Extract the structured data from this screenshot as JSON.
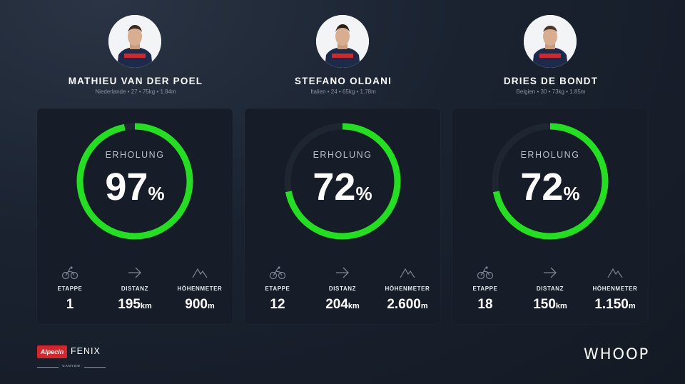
{
  "riders": [
    {
      "name": "MATHIEU VAN DER POEL",
      "meta": "Niederlande • 27 • 75kg • 1.84m",
      "recovery_label": "ERHOLUNG",
      "recovery_value": "97",
      "recovery_unit": "%",
      "recovery_fraction": 0.97,
      "stats": [
        {
          "icon": "cyclist-icon",
          "label": "ETAPPE",
          "value": "1",
          "unit": ""
        },
        {
          "icon": "arrow-right-icon",
          "label": "DISTANZ",
          "value": "195",
          "unit": "km"
        },
        {
          "icon": "mountain-icon",
          "label": "HÖHENMETER",
          "value": "900",
          "unit": "m"
        }
      ]
    },
    {
      "name": "STEFANO OLDANI",
      "meta": "Italien • 24 • 65kg • 1.78m",
      "recovery_label": "ERHOLUNG",
      "recovery_value": "72",
      "recovery_unit": "%",
      "recovery_fraction": 0.72,
      "stats": [
        {
          "icon": "cyclist-icon",
          "label": "ETAPPE",
          "value": "12",
          "unit": ""
        },
        {
          "icon": "arrow-right-icon",
          "label": "DISTANZ",
          "value": "204",
          "unit": "km"
        },
        {
          "icon": "mountain-icon",
          "label": "HÖHENMETER",
          "value": "2.600",
          "unit": "m"
        }
      ]
    },
    {
      "name": "DRIES DE BONDT",
      "meta": "Belgien • 30 • 73kg • 1.85m",
      "recovery_label": "ERHOLUNG",
      "recovery_value": "72",
      "recovery_unit": "%",
      "recovery_fraction": 0.72,
      "stats": [
        {
          "icon": "cyclist-icon",
          "label": "ETAPPE",
          "value": "18",
          "unit": ""
        },
        {
          "icon": "arrow-right-icon",
          "label": "DISTANZ",
          "value": "150",
          "unit": "km"
        },
        {
          "icon": "mountain-icon",
          "label": "HÖHENMETER",
          "value": "1.150",
          "unit": "m"
        }
      ]
    }
  ],
  "brand": {
    "alpecin": "Alpecin",
    "fenix": "FENIX",
    "canyon": "CANYON",
    "whoop": "WHOOP"
  },
  "colors": {
    "ring_active": "#22e01f",
    "ring_track": "#1e2632",
    "card_bg": "#161d28",
    "alpecin_red": "#d4262b"
  }
}
